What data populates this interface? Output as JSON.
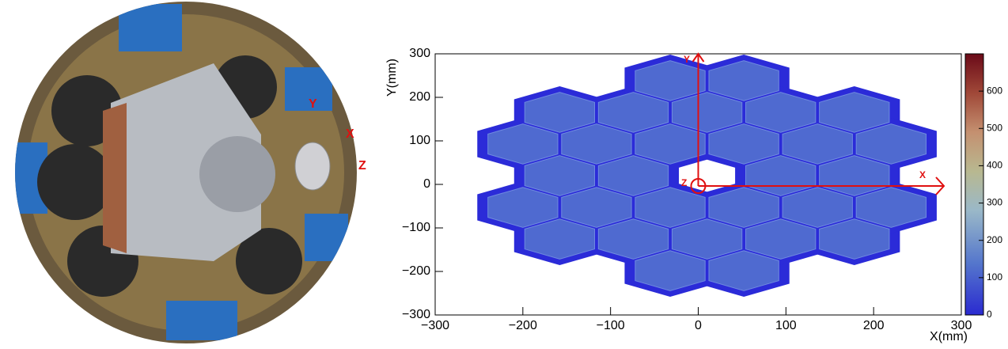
{
  "chart_data": {
    "type": "heatmap",
    "xlabel": "X(mm)",
    "ylabel": "Y(mm)",
    "xlim": [
      -300,
      300
    ],
    "ylim": [
      -300,
      300
    ],
    "zlim": [
      0,
      700
    ],
    "xticks": [
      {
        "value": -300,
        "label": "−300"
      },
      {
        "value": -200,
        "label": "−200"
      },
      {
        "value": -100,
        "label": "−100"
      },
      0,
      100,
      200,
      300
    ],
    "yticks": [
      {
        "value": -300,
        "label": "−300"
      },
      {
        "value": -200,
        "label": "−200"
      },
      {
        "value": -100,
        "label": "−100"
      },
      0,
      100,
      200,
      300
    ],
    "zticks": [
      0,
      100,
      200,
      300,
      400,
      500,
      600
    ],
    "annotations": [
      "X",
      "Y",
      "Z"
    ],
    "photo_labels": [
      "Y",
      "X",
      "Z"
    ]
  }
}
